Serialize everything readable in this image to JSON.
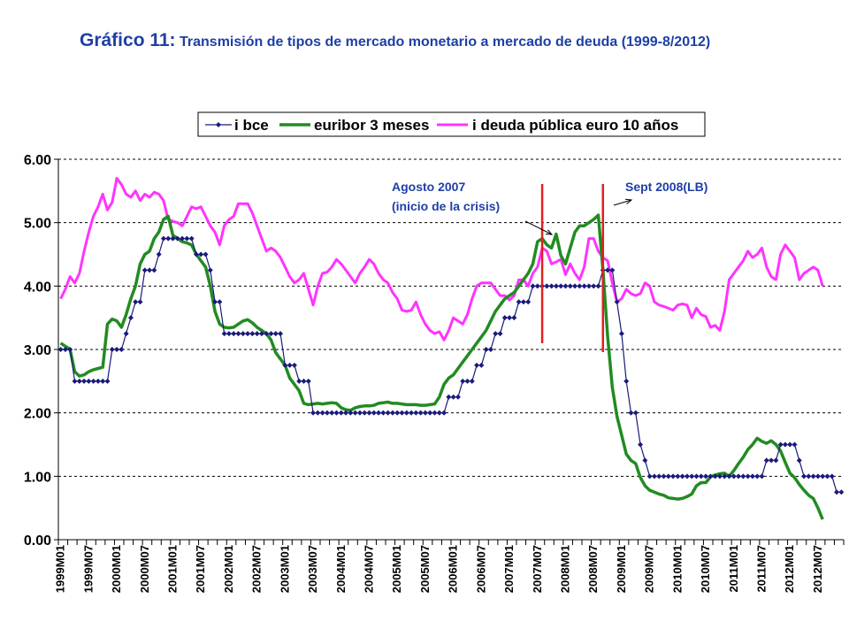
{
  "title": {
    "main": "Gráfico 11:",
    "sub": "Transmisión de tipos de mercado monetario a mercado de deuda (1999-8/2012)"
  },
  "annotations": {
    "a1_line1": "Agosto 2007",
    "a1_line2": "(inicio de la crisis)",
    "a2": "Sept 2008(LB)"
  },
  "colors": {
    "title": "#1F3FA6",
    "ibce": "#1A1A7A",
    "euribor": "#228B22",
    "deuda": "#FF33FF",
    "marker_line": "#E02020"
  },
  "chart_data": {
    "type": "line",
    "x_start": "1999M01",
    "x_end": "2012M08",
    "x_tick_labels": [
      "1999M01",
      "1999M07",
      "2000M01",
      "2000M07",
      "2001M01",
      "2001M07",
      "2002M01",
      "2002M07",
      "2003M01",
      "2003M07",
      "2004M01",
      "2004M07",
      "2005M01",
      "2005M07",
      "2006M01",
      "2006M07",
      "2007M01",
      "2007M07",
      "2008M01",
      "2008M07",
      "2009M01",
      "2009M07",
      "2010M01",
      "2010M07",
      "2011M01",
      "2011M07",
      "2012M01",
      "2012M07"
    ],
    "y_tick_labels": [
      "0.00",
      "1.00",
      "2.00",
      "3.00",
      "4.00",
      "5.00",
      "6.00"
    ],
    "ylim": [
      0,
      6
    ],
    "grid": "horizontal dashed",
    "legend_position": "top",
    "vertical_markers": [
      {
        "date": "2007M08",
        "label": "Agosto 2007 (inicio de la crisis)"
      },
      {
        "date": "2008M09",
        "label": "Sept 2008(LB)"
      }
    ],
    "series": [
      {
        "name": "i bce",
        "values": [
          3.0,
          3.0,
          3.0,
          2.5,
          2.5,
          2.5,
          2.5,
          2.5,
          2.5,
          2.5,
          2.5,
          3.0,
          3.0,
          3.0,
          3.25,
          3.5,
          3.75,
          3.75,
          4.25,
          4.25,
          4.25,
          4.5,
          4.75,
          4.75,
          4.75,
          4.75,
          4.75,
          4.75,
          4.75,
          4.5,
          4.5,
          4.5,
          4.25,
          3.75,
          3.75,
          3.25,
          3.25,
          3.25,
          3.25,
          3.25,
          3.25,
          3.25,
          3.25,
          3.25,
          3.25,
          3.25,
          3.25,
          3.25,
          2.75,
          2.75,
          2.75,
          2.5,
          2.5,
          2.5,
          2.0,
          2.0,
          2.0,
          2.0,
          2.0,
          2.0,
          2.0,
          2.0,
          2.0,
          2.0,
          2.0,
          2.0,
          2.0,
          2.0,
          2.0,
          2.0,
          2.0,
          2.0,
          2.0,
          2.0,
          2.0,
          2.0,
          2.0,
          2.0,
          2.0,
          2.0,
          2.0,
          2.0,
          2.0,
          2.25,
          2.25,
          2.25,
          2.5,
          2.5,
          2.5,
          2.75,
          2.75,
          3.0,
          3.0,
          3.25,
          3.25,
          3.5,
          3.5,
          3.5,
          3.75,
          3.75,
          3.75,
          4.0,
          4.0,
          4.0,
          4.0,
          4.0,
          4.0,
          4.0,
          4.0,
          4.0,
          4.0,
          4.0,
          4.0,
          4.0,
          4.0,
          4.0,
          4.25,
          4.25,
          4.25,
          3.75,
          3.25,
          2.5,
          2.0,
          2.0,
          1.5,
          1.25,
          1.0,
          1.0,
          1.0,
          1.0,
          1.0,
          1.0,
          1.0,
          1.0,
          1.0,
          1.0,
          1.0,
          1.0,
          1.0,
          1.0,
          1.0,
          1.0,
          1.0,
          1.0,
          1.0,
          1.0,
          1.0,
          1.0,
          1.0,
          1.0,
          1.0,
          1.25,
          1.25,
          1.25,
          1.5,
          1.5,
          1.5,
          1.5,
          1.25,
          1.0,
          1.0,
          1.0,
          1.0,
          1.0,
          1.0,
          1.0,
          0.75,
          0.75
        ]
      },
      {
        "name": "euribor 3 meses",
        "values": [
          3.1,
          3.05,
          3.0,
          2.65,
          2.58,
          2.6,
          2.65,
          2.68,
          2.7,
          2.72,
          3.4,
          3.48,
          3.45,
          3.35,
          3.55,
          3.8,
          4.0,
          4.35,
          4.5,
          4.55,
          4.75,
          4.85,
          5.05,
          5.1,
          4.8,
          4.75,
          4.7,
          4.68,
          4.65,
          4.5,
          4.4,
          4.3,
          4.0,
          3.6,
          3.4,
          3.35,
          3.34,
          3.35,
          3.4,
          3.45,
          3.47,
          3.42,
          3.35,
          3.3,
          3.25,
          3.15,
          2.95,
          2.85,
          2.75,
          2.55,
          2.45,
          2.35,
          2.15,
          2.13,
          2.14,
          2.15,
          2.14,
          2.15,
          2.16,
          2.15,
          2.08,
          2.05,
          2.04,
          2.08,
          2.1,
          2.11,
          2.11,
          2.12,
          2.15,
          2.16,
          2.17,
          2.15,
          2.15,
          2.14,
          2.13,
          2.13,
          2.13,
          2.12,
          2.12,
          2.13,
          2.14,
          2.25,
          2.45,
          2.55,
          2.6,
          2.7,
          2.8,
          2.9,
          3.0,
          3.1,
          3.2,
          3.3,
          3.45,
          3.6,
          3.7,
          3.8,
          3.85,
          3.9,
          4.0,
          4.1,
          4.2,
          4.35,
          4.7,
          4.75,
          4.65,
          4.6,
          4.82,
          4.48,
          4.35,
          4.6,
          4.85,
          4.95,
          4.95,
          5.0,
          5.05,
          5.12,
          4.25,
          3.2,
          2.4,
          1.95,
          1.65,
          1.35,
          1.25,
          1.2,
          0.98,
          0.85,
          0.78,
          0.75,
          0.72,
          0.7,
          0.66,
          0.65,
          0.64,
          0.65,
          0.68,
          0.72,
          0.85,
          0.9,
          0.9,
          0.99,
          1.02,
          1.04,
          1.05,
          1.0,
          1.09,
          1.2,
          1.3,
          1.42,
          1.5,
          1.6,
          1.55,
          1.52,
          1.56,
          1.5,
          1.4,
          1.22,
          1.05,
          0.98,
          0.87,
          0.78,
          0.7,
          0.65,
          0.5,
          0.32
        ]
      },
      {
        "name": "i deuda pública euro 10 años",
        "values": [
          3.8,
          3.95,
          4.15,
          4.05,
          4.2,
          4.55,
          4.85,
          5.1,
          5.25,
          5.45,
          5.2,
          5.32,
          5.7,
          5.6,
          5.45,
          5.4,
          5.5,
          5.35,
          5.45,
          5.4,
          5.48,
          5.45,
          5.35,
          5.05,
          5.02,
          5.0,
          4.95,
          5.1,
          5.25,
          5.22,
          5.25,
          5.1,
          4.95,
          4.85,
          4.65,
          4.95,
          5.05,
          5.1,
          5.3,
          5.3,
          5.3,
          5.15,
          4.95,
          4.75,
          4.55,
          4.6,
          4.55,
          4.45,
          4.3,
          4.15,
          4.05,
          4.1,
          4.2,
          3.95,
          3.7,
          4.0,
          4.2,
          4.22,
          4.3,
          4.42,
          4.35,
          4.25,
          4.15,
          4.05,
          4.2,
          4.3,
          4.42,
          4.35,
          4.2,
          4.1,
          4.05,
          3.9,
          3.8,
          3.62,
          3.6,
          3.62,
          3.75,
          3.55,
          3.4,
          3.3,
          3.25,
          3.28,
          3.15,
          3.3,
          3.5,
          3.45,
          3.4,
          3.55,
          3.8,
          4.0,
          4.05,
          4.05,
          4.05,
          3.95,
          3.85,
          3.85,
          3.78,
          3.85,
          4.1,
          4.1,
          4.0,
          4.2,
          4.3,
          4.6,
          4.55,
          4.35,
          4.38,
          4.42,
          4.18,
          4.35,
          4.2,
          4.1,
          4.3,
          4.75,
          4.75,
          4.55,
          4.45,
          4.4,
          4.05,
          3.75,
          3.8,
          3.95,
          3.88,
          3.85,
          3.88,
          4.05,
          4.0,
          3.75,
          3.7,
          3.68,
          3.65,
          3.62,
          3.7,
          3.72,
          3.7,
          3.5,
          3.65,
          3.55,
          3.52,
          3.35,
          3.38,
          3.3,
          3.6,
          4.1,
          4.2,
          4.3,
          4.4,
          4.55,
          4.45,
          4.5,
          4.6,
          4.3,
          4.15,
          4.1,
          4.5,
          4.65,
          4.55,
          4.45,
          4.1,
          4.2,
          4.25,
          4.3,
          4.25,
          4.0
        ]
      }
    ]
  }
}
